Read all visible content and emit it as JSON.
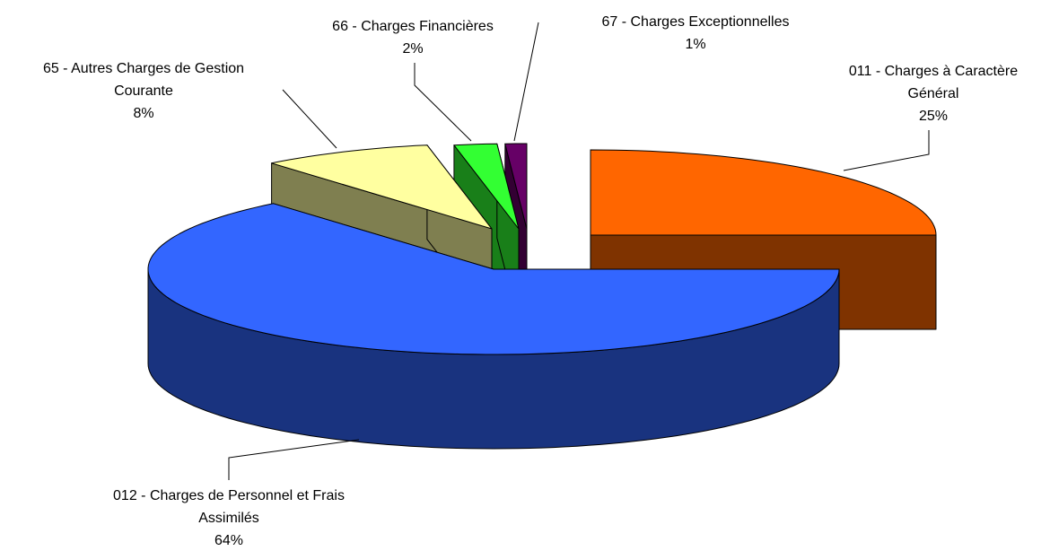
{
  "chart_data": {
    "type": "pie3d",
    "categories": [
      "011 - Charges à Caractère Général",
      "012 - Charges de Personnel et Frais Assimilés",
      "65 - Autres Charges de Gestion Courante",
      "66 - Charges Financières",
      "67 - Charges Exceptionnelles"
    ],
    "values": [
      25,
      64,
      8,
      2,
      1
    ],
    "value_labels": [
      "25%",
      "64%",
      "8%",
      "2%",
      "1%"
    ],
    "colors": [
      "#ff6600",
      "#3366ff",
      "#ffffa0",
      "#33ff33",
      "#660066"
    ]
  }
}
